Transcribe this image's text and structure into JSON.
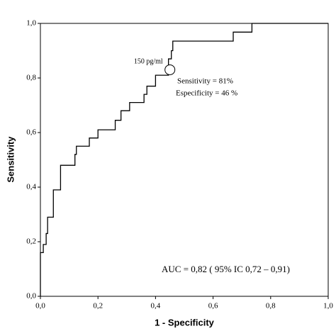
{
  "chart_data": {
    "type": "line",
    "x_label": "1 - Specificity",
    "y_label": "Sensitivity",
    "x": [
      0.0,
      0.0,
      0.01,
      0.01,
      0.02,
      0.02,
      0.025,
      0.025,
      0.045,
      0.045,
      0.07,
      0.07,
      0.12,
      0.12,
      0.125,
      0.125,
      0.17,
      0.17,
      0.2,
      0.2,
      0.26,
      0.26,
      0.28,
      0.28,
      0.31,
      0.31,
      0.36,
      0.36,
      0.37,
      0.37,
      0.4,
      0.4,
      0.445,
      0.445,
      0.455,
      0.455,
      0.46,
      0.46,
      0.51,
      0.51,
      0.67,
      0.67,
      0.68,
      0.68,
      0.735,
      0.735,
      0.74,
      0.74,
      1.0
    ],
    "values": [
      0.0,
      0.16,
      0.16,
      0.19,
      0.19,
      0.23,
      0.23,
      0.29,
      0.29,
      0.39,
      0.39,
      0.48,
      0.48,
      0.52,
      0.52,
      0.55,
      0.55,
      0.58,
      0.58,
      0.61,
      0.61,
      0.645,
      0.645,
      0.68,
      0.68,
      0.71,
      0.71,
      0.74,
      0.74,
      0.77,
      0.77,
      0.81,
      0.81,
      0.87,
      0.87,
      0.9,
      0.9,
      0.935,
      0.935,
      0.935,
      0.935,
      0.968,
      0.968,
      0.968,
      0.968,
      1.0,
      1.0,
      1.0,
      1.0
    ],
    "color": "#000000",
    "highlight": {
      "x": 0.45,
      "y": 0.83,
      "label": "150 pg/ml"
    },
    "annotations": [
      "Sensitivity = 81%",
      "Especificity = 46 %",
      "AUC = 0,82 ( 95% IC 0,72 – 0,91)"
    ],
    "xlim": [
      0,
      1
    ],
    "ylim": [
      0,
      1
    ],
    "xticks": [
      {
        "value": 0,
        "label": "0,0"
      },
      {
        "value": 0.2,
        "label": "0,2"
      },
      {
        "value": 0.4,
        "label": "0,4"
      },
      {
        "value": 0.6,
        "label": "0,6"
      },
      {
        "value": 0.8,
        "label": "0,8"
      },
      {
        "value": 1,
        "label": "1,0"
      }
    ],
    "yticks": [
      {
        "value": 0,
        "label": "0,0"
      },
      {
        "value": 0.2,
        "label": "0,2"
      },
      {
        "value": 0.4,
        "label": "0,4"
      },
      {
        "value": 0.6,
        "label": "0,6"
      },
      {
        "value": 0.8,
        "label": "0,8"
      },
      {
        "value": 1,
        "label": "1,0"
      }
    ]
  }
}
